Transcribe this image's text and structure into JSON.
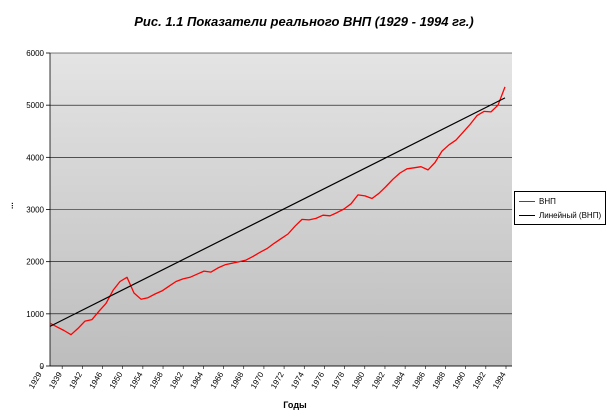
{
  "chart_data": {
    "type": "line",
    "title": "Рис. 1.1 Показатели реального ВНП (1929 - 1994 гг.)",
    "xlabel": "Годы",
    "ylabel": "...",
    "ylim": [
      0,
      6000
    ],
    "yticks": [
      0,
      1000,
      2000,
      3000,
      4000,
      5000,
      6000
    ],
    "xlim": [
      1929,
      1995
    ],
    "xticks": [
      "1929",
      "1939",
      "1942",
      "1946",
      "1950",
      "1954",
      "1958",
      "1962",
      "1964",
      "1966",
      "1968",
      "1970",
      "1972",
      "1974",
      "1976",
      "1978",
      "1980",
      "1982",
      "1984",
      "1986",
      "1988",
      "1990",
      "1992",
      "1994"
    ],
    "grid": true,
    "legend_position": "right",
    "series": [
      {
        "name": "ВНП",
        "color": "#ff0000",
        "x": [
          1929,
          1930,
          1931,
          1932,
          1933,
          1934,
          1935,
          1936,
          1937,
          1938,
          1939,
          1940,
          1941,
          1942,
          1943,
          1944,
          1945,
          1946,
          1947,
          1948,
          1949,
          1950,
          1951,
          1952,
          1953,
          1954,
          1955,
          1956,
          1957,
          1958,
          1959,
          1960,
          1961,
          1962,
          1963,
          1964,
          1965,
          1966,
          1967,
          1968,
          1969,
          1970,
          1971,
          1972,
          1973,
          1974,
          1975,
          1976,
          1977,
          1978,
          1979,
          1980,
          1981,
          1982,
          1983,
          1984,
          1985,
          1986,
          1987,
          1988,
          1989,
          1990,
          1991,
          1992,
          1993,
          1994
        ],
        "values": [
          820,
          750,
          680,
          600,
          720,
          860,
          890,
          1050,
          1200,
          1450,
          1620,
          1700,
          1400,
          1280,
          1310,
          1380,
          1440,
          1530,
          1620,
          1670,
          1700,
          1760,
          1820,
          1800,
          1880,
          1940,
          1970,
          2000,
          2030,
          2100,
          2180,
          2250,
          2350,
          2440,
          2530,
          2680,
          2810,
          2800,
          2830,
          2890,
          2880,
          2940,
          3010,
          3110,
          3280,
          3260,
          3210,
          3310,
          3440,
          3580,
          3700,
          3780,
          3800,
          3820,
          3760,
          3900,
          4120,
          4240,
          4330,
          4480,
          4630,
          4800,
          4880,
          4870,
          5000,
          5350
        ]
      },
      {
        "name": "Линейный (ВНП)",
        "color": "#000000",
        "x": [
          1929,
          1994
        ],
        "values": [
          760,
          5140
        ]
      }
    ]
  }
}
